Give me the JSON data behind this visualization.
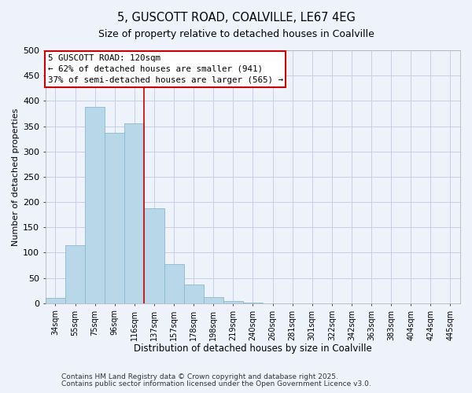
{
  "title": "5, GUSCOTT ROAD, COALVILLE, LE67 4EG",
  "subtitle": "Size of property relative to detached houses in Coalville",
  "xlabel": "Distribution of detached houses by size in Coalville",
  "ylabel": "Number of detached properties",
  "bar_color": "#b8d8ea",
  "bar_edge_color": "#8ab8d0",
  "bin_labels": [
    "34sqm",
    "55sqm",
    "75sqm",
    "96sqm",
    "116sqm",
    "137sqm",
    "157sqm",
    "178sqm",
    "198sqm",
    "219sqm",
    "240sqm",
    "260sqm",
    "281sqm",
    "301sqm",
    "322sqm",
    "342sqm",
    "363sqm",
    "383sqm",
    "404sqm",
    "424sqm",
    "445sqm"
  ],
  "bar_heights": [
    10,
    115,
    388,
    337,
    355,
    188,
    78,
    37,
    12,
    5,
    2,
    0,
    0,
    0,
    0,
    0,
    0,
    0,
    0,
    0,
    0
  ],
  "red_line_x": 4.5,
  "annotation_line1": "5 GUSCOTT ROAD: 120sqm",
  "annotation_line2": "← 62% of detached houses are smaller (941)",
  "annotation_line3": "37% of semi-detached houses are larger (565) →",
  "annotation_box_color": "#ffffff",
  "annotation_box_edge": "#cc0000",
  "ylim": [
    0,
    500
  ],
  "yticks": [
    0,
    50,
    100,
    150,
    200,
    250,
    300,
    350,
    400,
    450,
    500
  ],
  "footnote1": "Contains HM Land Registry data © Crown copyright and database right 2025.",
  "footnote2": "Contains public sector information licensed under the Open Government Licence v3.0.",
  "background_color": "#eef2fb",
  "grid_color": "#c5d0e8",
  "plot_bg_color": "#eef2fb"
}
